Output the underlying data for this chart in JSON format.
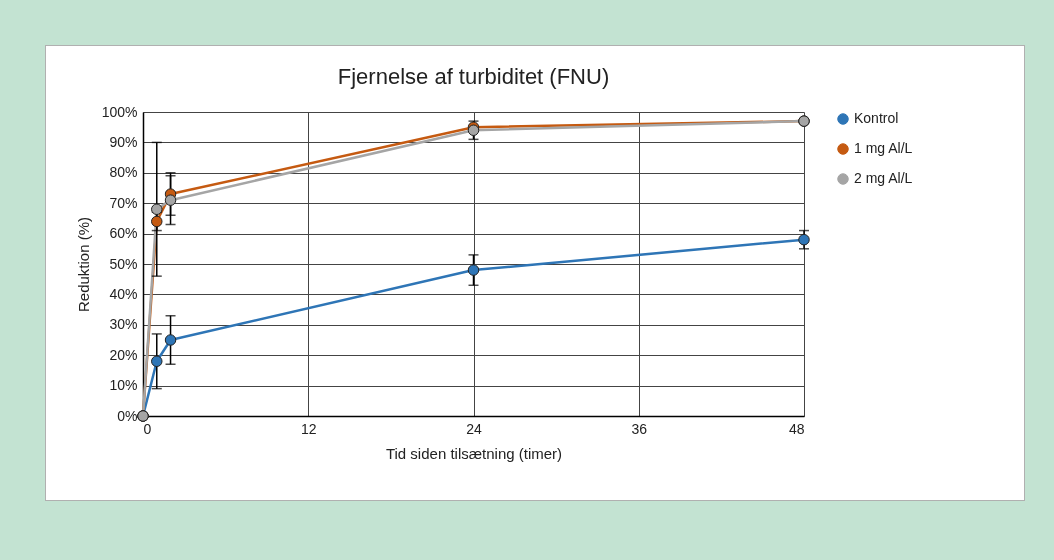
{
  "chart_data": {
    "type": "line",
    "title": "Fjernelse af turbiditet (FNU)",
    "xlabel": "Tid siden tilsætning (timer)",
    "ylabel": "Reduktion (%)",
    "x": [
      0,
      1,
      2,
      24,
      48
    ],
    "series": [
      {
        "name": "Kontrol",
        "color": "#2e75b6",
        "values": [
          0,
          18,
          25,
          48,
          58
        ],
        "errors": [
          null,
          9,
          8,
          5,
          3
        ]
      },
      {
        "name": "1 mg Al/L",
        "color": "#c55a11",
        "values": [
          0,
          64,
          73,
          95,
          97
        ],
        "errors": [
          null,
          3,
          7,
          null,
          null
        ]
      },
      {
        "name": "2 mg Al/L",
        "color": "#a5a5a5",
        "values": [
          0,
          68,
          71,
          94,
          97
        ],
        "errors": [
          null,
          22,
          8,
          3,
          null
        ]
      }
    ],
    "xlim": [
      0,
      48
    ],
    "xticks": [
      0,
      12,
      24,
      36,
      48
    ],
    "ylim": [
      0,
      100
    ],
    "yticks": [
      {
        "value": 0,
        "label": "0%"
      },
      {
        "value": 10,
        "label": "10%"
      },
      {
        "value": 20,
        "label": "20%"
      },
      {
        "value": 30,
        "label": "30%"
      },
      {
        "value": 40,
        "label": "40%"
      },
      {
        "value": 50,
        "label": "50%"
      },
      {
        "value": 60,
        "label": "60%"
      },
      {
        "value": 70,
        "label": "70%"
      },
      {
        "value": 80,
        "label": "80%"
      },
      {
        "value": 90,
        "label": "90%"
      },
      {
        "value": 100,
        "label": "100%"
      }
    ],
    "grid": true,
    "legend": "right",
    "marker": "circle",
    "line_style": "solid"
  }
}
